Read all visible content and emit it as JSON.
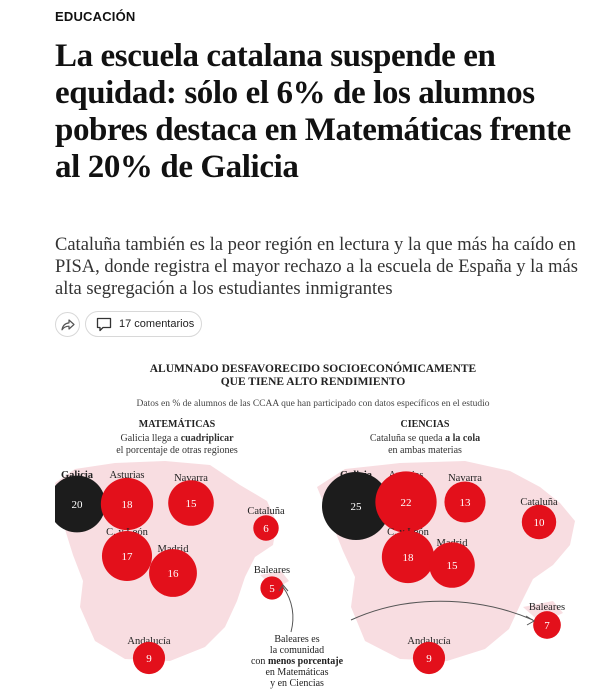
{
  "article": {
    "section": "EDUCACIÓN",
    "headline": "La escuela catalana suspende en equidad: sólo el 6% de los alumnos pobres destaca en Matemáticas frente al 20% de Galicia",
    "subtitle": "Cataluña también es la peor región en lectura y la que más ha caído en PISA, donde registra el mayor rechazo a la escuela de España y la más alta segregación a los estudiantes inmigrantes",
    "share_icon": "share-icon",
    "comments_icon": "comment-icon",
    "comments_label": "17 comentarios"
  },
  "infographic": {
    "title_line1": "ALUMNADO DESFAVORECIDO SOCIOECONÓMICAMENTE",
    "title_line2": "QUE TIENE ALTO RENDIMIENTO",
    "subtitle": "Datos en % de alumnos de las CCAA que han participado con datos específicos en el estudio",
    "colors": {
      "highlight": "#1c1c1c",
      "bubble": "#e3101b",
      "map": "#f8dde1",
      "text": "#222222"
    },
    "panels": [
      {
        "heading": "MATEMÁTICAS",
        "note_pre": "Galicia llega a ",
        "note_bold": "cuadriplicar",
        "note_line2": "el porcentaje de otras regiones",
        "regions": [
          {
            "name": "Galicia",
            "value": 20,
            "highlight": true
          },
          {
            "name": "Asturias",
            "value": 18
          },
          {
            "name": "Navarra",
            "value": 15
          },
          {
            "name": "Cataluña",
            "value": 6
          },
          {
            "name": "C. y León",
            "value": 17
          },
          {
            "name": "Madrid",
            "value": 16
          },
          {
            "name": "Baleares",
            "value": 5
          },
          {
            "name": "Andalucía",
            "value": 9
          }
        ]
      },
      {
        "heading": "CIENCIAS",
        "note_pre": "Cataluña se queda ",
        "note_bold": "a la cola",
        "note_line2": "en ambas materias",
        "regions": [
          {
            "name": "Galicia",
            "value": 25,
            "highlight": true
          },
          {
            "name": "Asturias",
            "value": 22
          },
          {
            "name": "Navarra",
            "value": 13
          },
          {
            "name": "Cataluña",
            "value": 10
          },
          {
            "name": "C. y León",
            "value": 18
          },
          {
            "name": "Madrid",
            "value": 15
          },
          {
            "name": "Baleares",
            "value": 7
          },
          {
            "name": "Andalucía",
            "value": 9
          }
        ]
      }
    ],
    "callout": {
      "line1": "Baleares es",
      "line2": "la comunidad",
      "line3_pre": "con ",
      "line3_bold": "menos porcentaje",
      "line4": "en Matemáticas",
      "line5": "y en Ciencias"
    }
  }
}
